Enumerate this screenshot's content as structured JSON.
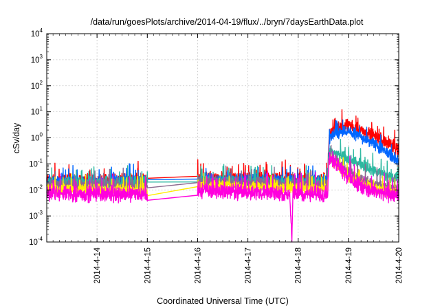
{
  "chart_data": {
    "type": "line",
    "title": "/data/run/goesPlots/archive/2014-04-19/flux/../bryn/7daysEarthData.plot",
    "xlabel": "Coordinated Universal Time (UTC)",
    "ylabel": "cSv/day",
    "y_scale": "log",
    "ylim": [
      0.0001,
      10000
    ],
    "y_ticks": [
      {
        "value": 0.0001,
        "base": "10",
        "exp": "-4"
      },
      {
        "value": 0.001,
        "base": "10",
        "exp": "-3"
      },
      {
        "value": 0.01,
        "base": "10",
        "exp": "-2"
      },
      {
        "value": 0.1,
        "base": "10",
        "exp": "-1"
      },
      {
        "value": 1,
        "base": "10",
        "exp": "0"
      },
      {
        "value": 10,
        "base": "10",
        "exp": "1"
      },
      {
        "value": 100,
        "base": "10",
        "exp": "2"
      },
      {
        "value": 1000,
        "base": "10",
        "exp": "3"
      },
      {
        "value": 10000,
        "base": "10",
        "exp": "4"
      }
    ],
    "xlim": [
      "2014-04-13 00:00",
      "2014-04-20 00:00"
    ],
    "x_ticks": [
      "2014-4-14",
      "2014-4-15",
      "2014-4-16",
      "2014-4-17",
      "2014-4-18",
      "2014-4-19",
      "2014-4-20"
    ],
    "grid": true,
    "series": [
      {
        "color": "#ff0000",
        "noise": 0.55,
        "points": [
          [
            "2014-04-13 00:00",
            0.022
          ],
          [
            "2014-04-14 23:50",
            0.025
          ],
          [
            "2014-04-15 00:00",
            0.028
          ],
          [
            "2014-04-16 00:00",
            0.028
          ],
          [
            "2014-04-18 14:00",
            0.025
          ],
          [
            "2014-04-18 14:30",
            0.3
          ],
          [
            "2014-04-18 15:00",
            1.6
          ],
          [
            "2014-04-18 20:00",
            2.6
          ],
          [
            "2014-04-19 00:00",
            3.0
          ],
          [
            "2014-04-19 06:00",
            2.0
          ],
          [
            "2014-04-19 12:00",
            1.2
          ],
          [
            "2014-04-19 18:00",
            0.7
          ],
          [
            "2014-04-20 00:00",
            0.35
          ]
        ]
      },
      {
        "color": "#0066ff",
        "noise": 0.5,
        "points": [
          [
            "2014-04-13 00:00",
            0.02
          ],
          [
            "2014-04-14 23:50",
            0.022
          ],
          [
            "2014-04-15 00:00",
            0.025
          ],
          [
            "2014-04-16 00:00",
            0.025
          ],
          [
            "2014-04-18 14:00",
            0.022
          ],
          [
            "2014-04-18 14:30",
            0.2
          ],
          [
            "2014-04-18 15:00",
            1.0
          ],
          [
            "2014-04-18 20:00",
            1.6
          ],
          [
            "2014-04-19 00:00",
            1.7
          ],
          [
            "2014-04-19 06:00",
            1.1
          ],
          [
            "2014-04-19 12:00",
            0.6
          ],
          [
            "2014-04-19 18:00",
            0.3
          ],
          [
            "2014-04-20 00:00",
            0.12
          ]
        ]
      },
      {
        "color": "#2db8a0",
        "noise": 0.5,
        "points": [
          [
            "2014-04-13 00:00",
            0.018
          ],
          [
            "2014-04-14 23:50",
            0.02
          ],
          [
            "2014-04-15 00:00",
            0.02
          ],
          [
            "2014-04-16 00:00",
            0.022
          ],
          [
            "2014-04-18 14:00",
            0.018
          ],
          [
            "2014-04-18 14:30",
            0.12
          ],
          [
            "2014-04-18 15:00",
            0.3
          ],
          [
            "2014-04-18 20:00",
            0.22
          ],
          [
            "2014-04-19 00:00",
            0.14
          ],
          [
            "2014-04-19 06:00",
            0.09
          ],
          [
            "2014-04-19 12:00",
            0.055
          ],
          [
            "2014-04-19 18:00",
            0.035
          ],
          [
            "2014-04-20 00:00",
            0.025
          ]
        ]
      },
      {
        "color": "#8b6a8f",
        "noise": 0.5,
        "points": [
          [
            "2014-04-13 00:00",
            0.015
          ],
          [
            "2014-04-14 23:50",
            0.015
          ],
          [
            "2014-04-15 00:00",
            0.012
          ],
          [
            "2014-04-16 00:00",
            0.02
          ],
          [
            "2014-04-18 14:00",
            0.015
          ],
          [
            "2014-04-18 14:30",
            0.1
          ],
          [
            "2014-04-18 15:00",
            0.2
          ],
          [
            "2014-04-18 20:00",
            0.1
          ],
          [
            "2014-04-19 00:00",
            0.05
          ],
          [
            "2014-04-19 06:00",
            0.025
          ],
          [
            "2014-04-19 12:00",
            0.016
          ],
          [
            "2014-04-19 18:00",
            0.012
          ],
          [
            "2014-04-20 00:00",
            0.01
          ]
        ]
      },
      {
        "color": "#ffee00",
        "noise": 0.45,
        "points": [
          [
            "2014-04-13 00:00",
            0.011
          ],
          [
            "2014-04-14 23:50",
            0.01
          ],
          [
            "2014-04-15 00:00",
            0.006
          ],
          [
            "2014-04-16 00:00",
            0.015
          ],
          [
            "2014-04-18 14:00",
            0.011
          ],
          [
            "2014-04-18 14:30",
            0.08
          ],
          [
            "2014-04-18 15:00",
            0.15
          ],
          [
            "2014-04-18 20:00",
            0.07
          ],
          [
            "2014-04-19 00:00",
            0.03
          ],
          [
            "2014-04-19 06:00",
            0.018
          ],
          [
            "2014-04-19 12:00",
            0.012
          ],
          [
            "2014-04-19 18:00",
            0.009
          ],
          [
            "2014-04-20 00:00",
            0.007
          ]
        ]
      },
      {
        "color": "#ff00dd",
        "noise": 0.65,
        "points": [
          [
            "2014-04-13 00:00",
            0.007
          ],
          [
            "2014-04-14 23:50",
            0.007
          ],
          [
            "2014-04-15 00:00",
            0.004
          ],
          [
            "2014-04-16 00:00",
            0.01
          ],
          [
            "2014-04-17 20:00",
            0.007
          ],
          [
            "2014-04-17 21:00",
            0.0001
          ],
          [
            "2014-04-17 21:30",
            0.007
          ],
          [
            "2014-04-18 14:00",
            0.007
          ],
          [
            "2014-04-18 14:30",
            0.06
          ],
          [
            "2014-04-18 15:00",
            0.18
          ],
          [
            "2014-04-18 20:00",
            0.08
          ],
          [
            "2014-04-19 00:00",
            0.03
          ],
          [
            "2014-04-19 06:00",
            0.013
          ],
          [
            "2014-04-19 12:00",
            0.009
          ],
          [
            "2014-04-19 18:00",
            0.007
          ],
          [
            "2014-04-20 00:00",
            0.006
          ]
        ]
      }
    ],
    "data_gaps": [
      [
        "2014-04-15 00:00",
        "2014-04-16 00:00"
      ]
    ]
  }
}
